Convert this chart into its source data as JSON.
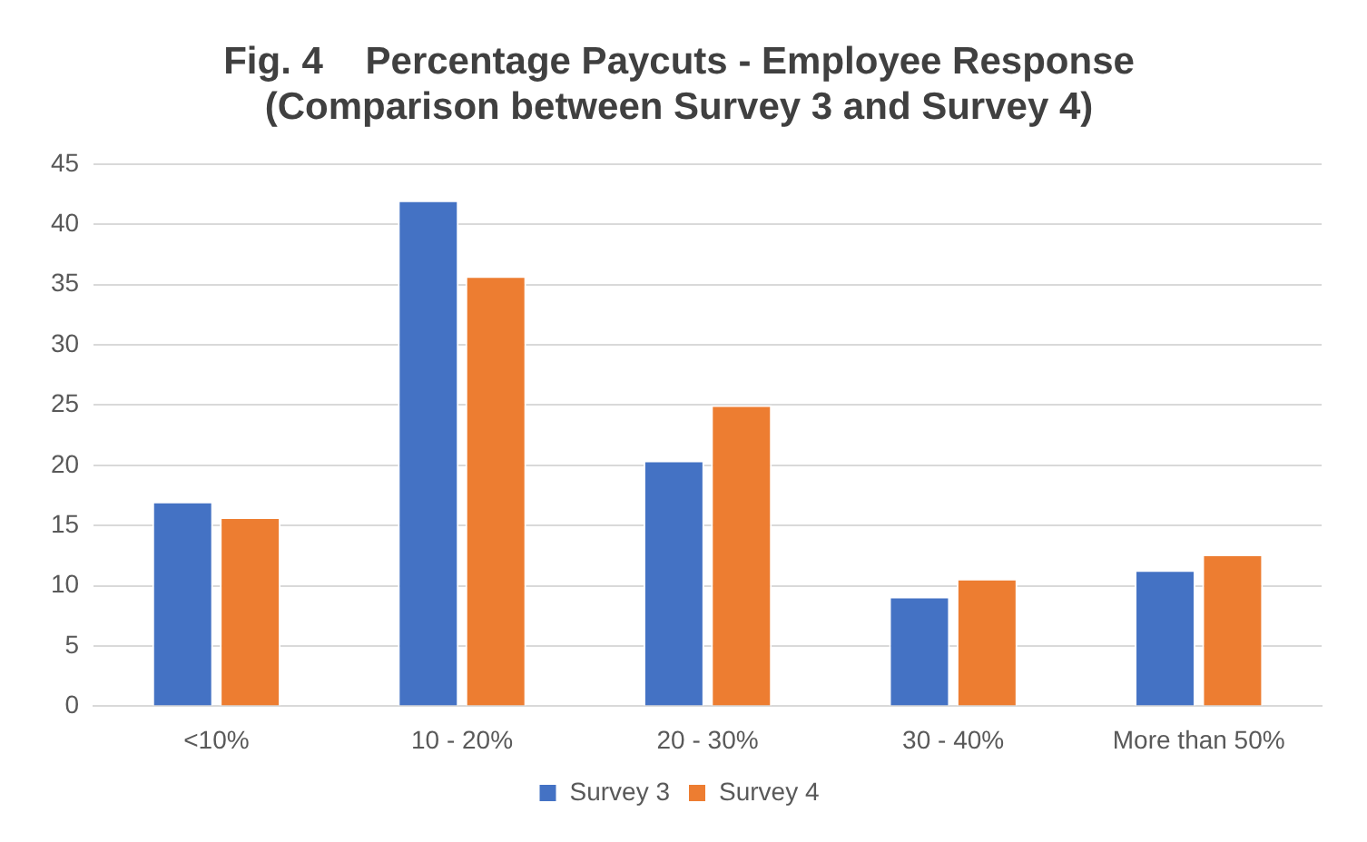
{
  "chart_data": {
    "type": "bar",
    "title": [
      "Fig. 4    Percentage Paycuts - Employee Response",
      "(Comparison between Survey 3 and Survey 4)"
    ],
    "categories": [
      "<10%",
      "10 - 20%",
      "20 - 30%",
      "30 - 40%",
      "More than 50%"
    ],
    "series": [
      {
        "name": "Survey 3",
        "color": "#4472c4",
        "values": [
          17,
          42,
          20.4,
          9.1,
          11.3
        ]
      },
      {
        "name": "Survey 4",
        "color": "#ed7d31",
        "values": [
          15.7,
          35.7,
          25,
          10.6,
          12.6
        ]
      }
    ],
    "ylim": [
      0,
      45
    ],
    "yticks": [
      0,
      5,
      10,
      15,
      20,
      25,
      30,
      35,
      40,
      45
    ],
    "grid": "y",
    "legend": "bottom"
  }
}
